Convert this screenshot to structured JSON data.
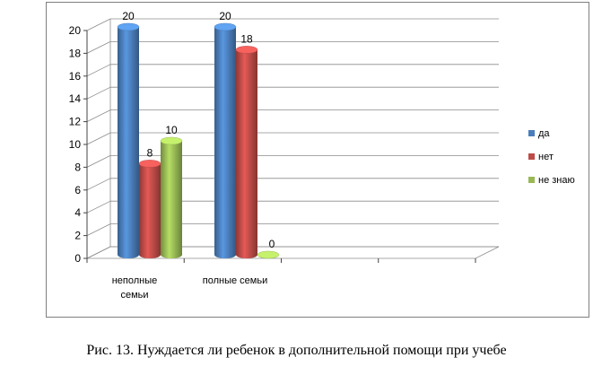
{
  "chart_data": {
    "type": "bar",
    "categories": [
      "неполные семьи",
      "полные семьи"
    ],
    "series": [
      {
        "name": "да",
        "values": [
          20,
          20
        ],
        "color": "#4a7ebb"
      },
      {
        "name": "нет",
        "values": [
          8,
          18
        ],
        "color": "#be4b48"
      },
      {
        "name": "не знаю",
        "values": [
          10,
          0
        ],
        "color": "#98b954"
      }
    ],
    "ylim": [
      0,
      20
    ],
    "yticks": [
      0,
      2,
      4,
      6,
      8,
      10,
      12,
      14,
      16,
      18,
      20
    ],
    "grid": true,
    "legend_position": "right",
    "data_labels": true
  },
  "caption": "Рис. 13. Нуждается ли ребенок в дополнительной помощи при учебе"
}
